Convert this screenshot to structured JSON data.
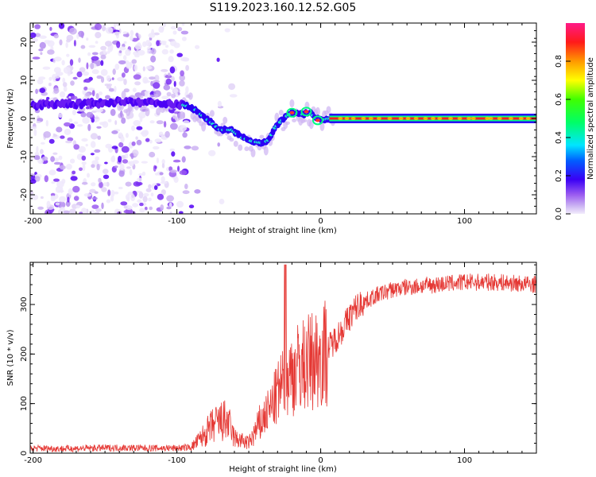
{
  "figure": {
    "title": "S119.2023.160.12.52.G05"
  },
  "chart_data": [
    {
      "type": "heatmap",
      "name": "spectrogram",
      "xlabel": "Height of straight line (km)",
      "ylabel": "Frequency (Hz)",
      "xlim": [
        -202,
        150
      ],
      "ylim": [
        -25,
        25
      ],
      "xticks": [
        -200,
        -100,
        0,
        100
      ],
      "yticks": [
        -20,
        -10,
        0,
        10,
        20
      ],
      "colorbar": {
        "label": "Normalized spectral amplitude",
        "range": [
          0,
          1
        ],
        "ticks": [
          "0.0",
          "0.2",
          "0.4",
          "0.6",
          "0.8"
        ]
      },
      "ridge": [
        {
          "x": -200,
          "y": 3.5
        },
        {
          "x": -160,
          "y": 4.0
        },
        {
          "x": -130,
          "y": 4.5
        },
        {
          "x": -110,
          "y": 4.0
        },
        {
          "x": -95,
          "y": 3.5
        },
        {
          "x": -88,
          "y": 2.5
        },
        {
          "x": -80,
          "y": 0.0
        },
        {
          "x": -70,
          "y": -3.0
        },
        {
          "x": -62,
          "y": -3.0
        },
        {
          "x": -55,
          "y": -5.0
        },
        {
          "x": -48,
          "y": -6.0
        },
        {
          "x": -40,
          "y": -6.5
        },
        {
          "x": -36,
          "y": -5.5
        },
        {
          "x": -32,
          "y": -2.5
        },
        {
          "x": -26,
          "y": 0.0
        },
        {
          "x": -20,
          "y": 1.5
        },
        {
          "x": -12,
          "y": 1.0
        },
        {
          "x": -8,
          "y": 1.8
        },
        {
          "x": -5,
          "y": 0.5
        },
        {
          "x": 0,
          "y": -0.5
        },
        {
          "x": 6,
          "y": 0.0
        },
        {
          "x": 150,
          "y": 0.0
        }
      ],
      "noise_region_x": [
        -202,
        -92
      ]
    },
    {
      "type": "line",
      "name": "snr",
      "xlabel": "Height of straight line (km)",
      "ylabel": "SNR (10 * v/v)",
      "xlim": [
        -202,
        150
      ],
      "ylim": [
        0,
        385
      ],
      "xticks": [
        -200,
        -100,
        0,
        100
      ],
      "yticks": [
        0,
        100,
        200,
        300
      ],
      "color": "#e53935",
      "series": [
        {
          "name": "SNR",
          "x": [
            -202,
            -180,
            -160,
            -140,
            -120,
            -100,
            -90,
            -85,
            -80,
            -75,
            -70,
            -65,
            -60,
            -55,
            -50,
            -45,
            -40,
            -35,
            -30,
            -25,
            -20,
            -15,
            -10,
            -5,
            0,
            5,
            10,
            15,
            20,
            25,
            30,
            40,
            50,
            60,
            80,
            100,
            120,
            150
          ],
          "values": [
            10,
            9,
            10,
            11,
            10,
            10,
            12,
            25,
            40,
            55,
            62,
            65,
            30,
            25,
            20,
            45,
            70,
            90,
            120,
            150,
            160,
            175,
            180,
            190,
            195,
            210,
            230,
            250,
            275,
            295,
            305,
            320,
            330,
            335,
            340,
            345,
            345,
            340
          ]
        }
      ]
    }
  ]
}
